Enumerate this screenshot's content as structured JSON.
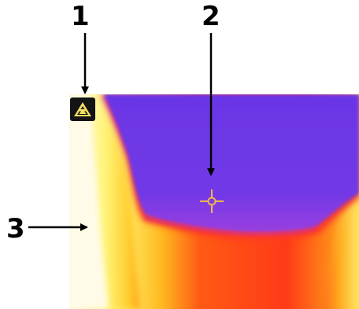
{
  "callouts": [
    {
      "number": "1"
    },
    {
      "number": "2"
    },
    {
      "number": "3"
    }
  ],
  "thermal_image": {
    "palette": [
      "#6a35e8",
      "#8a3ee6",
      "#ff3a1c",
      "#ff7a10",
      "#ffd428",
      "#fff8c8"
    ],
    "warning_icon": "high-temperature-warning-icon",
    "crosshair_color": "#f2b54a"
  }
}
